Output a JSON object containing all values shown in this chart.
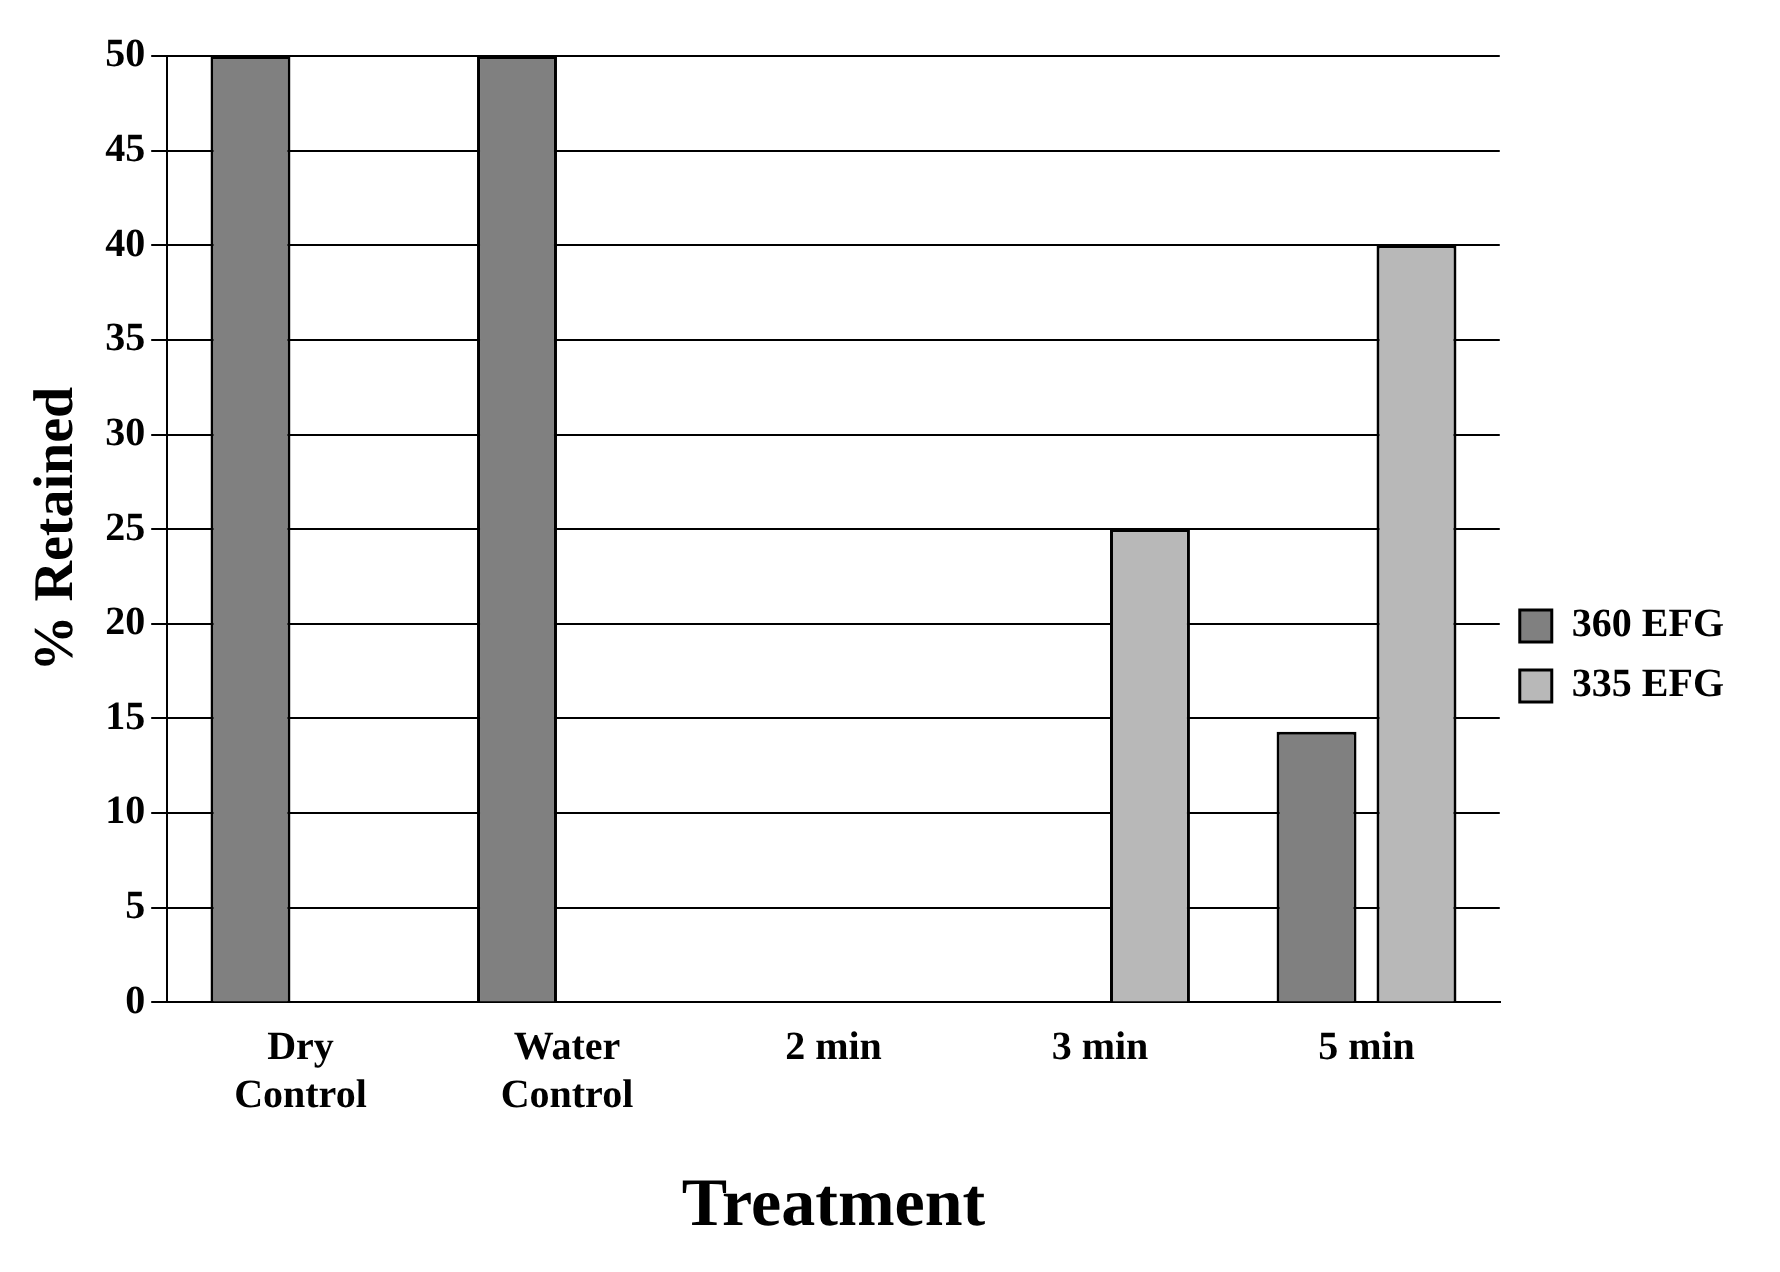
{
  "chart_data": {
    "type": "bar",
    "xlabel": "Treatment",
    "ylabel": "% Retained",
    "categories": [
      "Dry\nControl",
      "Water\nControl",
      "2 min",
      "3 min",
      "5 min"
    ],
    "series": [
      {
        "name": "360 EFG",
        "color": "#808080",
        "values": [
          50,
          50,
          0,
          0,
          14.3
        ]
      },
      {
        "name": "335 EFG",
        "color": "#b8b8b8",
        "values": [
          null,
          null,
          null,
          25,
          40
        ]
      }
    ],
    "ylim": [
      0,
      50
    ],
    "yticks": [
      0,
      5,
      10,
      15,
      20,
      25,
      30,
      35,
      40,
      45,
      50
    ],
    "grid": "y",
    "legend": "right"
  }
}
